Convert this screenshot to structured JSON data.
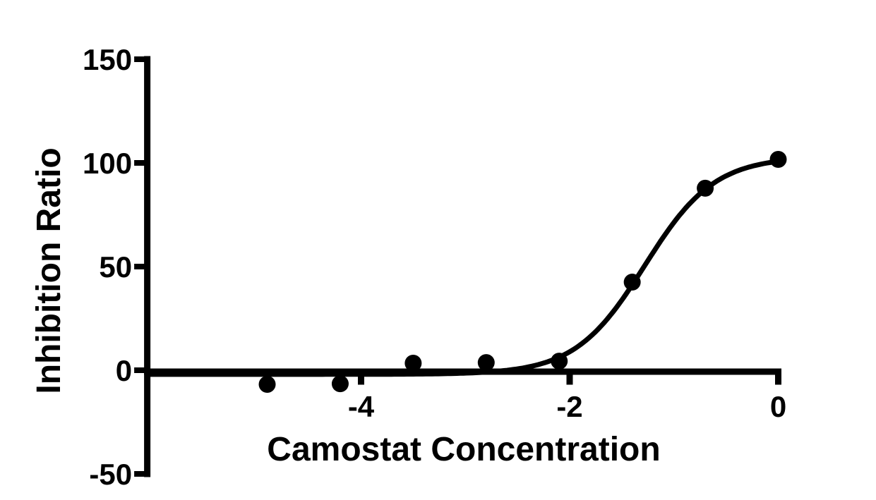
{
  "chart_data": {
    "type": "scatter",
    "title": "",
    "xlabel": "Camostat Concentration",
    "ylabel": "Inhibition Ratio",
    "x_ticks": [
      -4,
      -2,
      0
    ],
    "y_ticks": [
      -50,
      0,
      50,
      100,
      150
    ],
    "xlim": [
      -6.05,
      0
    ],
    "ylim": [
      -50,
      150
    ],
    "grid": false,
    "legend": "none",
    "points": {
      "x": [
        -4.9,
        -4.2,
        -3.5,
        -2.8,
        -2.1,
        -1.4,
        -0.7,
        0
      ],
      "y": [
        -6.8,
        -6.5,
        3.4,
        3.7,
        4.4,
        42.5,
        87.8,
        101.7
      ]
    },
    "fit_curve": {
      "model": "four-parameter-logistic",
      "bottom": -2,
      "top": 103,
      "log_ec50": -1.28,
      "hill_slope": 1.3,
      "x_start": -6.02,
      "x_end": 0
    },
    "colors": {
      "ink": "#000000",
      "background": "#ffffff"
    }
  }
}
